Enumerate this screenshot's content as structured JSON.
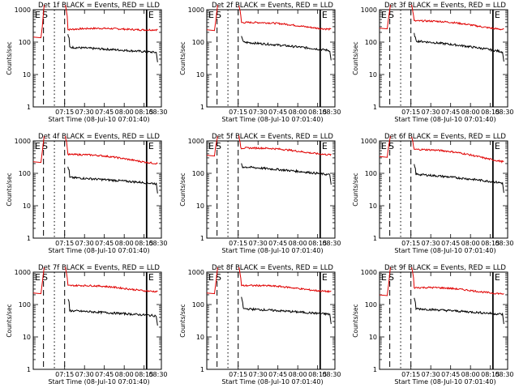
{
  "colors": {
    "events": "#000000",
    "lld": "#e00000",
    "axes": "#000000",
    "background": "#ffffff"
  },
  "chart_data": [
    {
      "type": "line",
      "title": "Det 1f BLACK = Events, RED = LLD",
      "scale": "log",
      "ylim": [
        1,
        1000
      ],
      "yticks": [
        "1",
        "10",
        "100",
        "1000"
      ],
      "ylabel": "Counts/sec",
      "xticks": [
        "07:15",
        "07:30",
        "07:45",
        "08:00",
        "08:15",
        "08:30"
      ],
      "xlabel": "Start Time (08-Jul-10 07:01:40)",
      "markers": [
        "E",
        "S",
        "E"
      ],
      "lld_level": 240,
      "lld_end": 260,
      "events_level": 70,
      "events_end": 48,
      "peak_events": 170,
      "series": [
        {
          "name": "BLACK = Events"
        },
        {
          "name": "RED = LLD"
        }
      ]
    },
    {
      "type": "line",
      "title": "Det 2f BLACK = Events, RED = LLD",
      "scale": "log",
      "ylim": [
        1,
        1000
      ],
      "yticks": [
        "1",
        "10",
        "100",
        "1000"
      ],
      "ylabel": "Counts/sec",
      "xticks": [
        "07:15",
        "07:30",
        "07:45",
        "08:00",
        "08:15",
        "08:30"
      ],
      "xlabel": "Start Time (08-Jul-10 07:01:40)",
      "markers": [
        "E",
        "S",
        "E"
      ],
      "lld_level": 400,
      "lld_end": 280,
      "events_level": 100,
      "events_end": 55,
      "peak_events": 160,
      "series": [
        {
          "name": "BLACK = Events"
        },
        {
          "name": "RED = LLD"
        }
      ]
    },
    {
      "type": "line",
      "title": "Det 3f BLACK = Events, RED = LLD",
      "scale": "log",
      "ylim": [
        1,
        1000
      ],
      "yticks": [
        "1",
        "10",
        "100",
        "1000"
      ],
      "ylabel": "Counts/sec",
      "xticks": [
        "07:15",
        "07:30",
        "07:45",
        "08:00",
        "08:15",
        "08:30"
      ],
      "xlabel": "Start Time (08-Jul-10 07:01:40)",
      "markers": [
        "E",
        "S",
        "E"
      ],
      "lld_level": 450,
      "lld_end": 280,
      "events_level": 110,
      "events_end": 50,
      "peak_events": 180,
      "series": [
        {
          "name": "BLACK = Events"
        },
        {
          "name": "RED = LLD"
        }
      ]
    },
    {
      "type": "line",
      "title": "Det 4f BLACK = Events, RED = LLD",
      "scale": "log",
      "ylim": [
        1,
        1000
      ],
      "yticks": [
        "1",
        "10",
        "100",
        "1000"
      ],
      "ylabel": "Counts/sec",
      "xticks": [
        "07:15",
        "07:30",
        "07:45",
        "08:00",
        "08:15",
        "08:30"
      ],
      "xlabel": "Start Time (08-Jul-10 07:01:40)",
      "markers": [
        "E",
        "S",
        "E"
      ],
      "lld_level": 380,
      "lld_end": 230,
      "events_level": 75,
      "events_end": 48,
      "peak_events": 160,
      "series": [
        {
          "name": "BLACK = Events"
        },
        {
          "name": "RED = LLD"
        }
      ]
    },
    {
      "type": "line",
      "title": "Det 5f BLACK = Events, RED = LLD",
      "scale": "log",
      "ylim": [
        1,
        1000
      ],
      "yticks": [
        "1",
        "10",
        "100",
        "1000"
      ],
      "ylabel": "Counts/sec",
      "xticks": [
        "07:15",
        "07:30",
        "07:45",
        "08:00",
        "08:15",
        "08:30"
      ],
      "xlabel": "Start Time (08-Jul-10 07:01:40)",
      "markers": [
        "E",
        "S",
        "E"
      ],
      "lld_level": 600,
      "lld_end": 420,
      "events_level": 160,
      "events_end": 90,
      "peak_events": 200,
      "series": [
        {
          "name": "BLACK = Events"
        },
        {
          "name": "RED = LLD"
        }
      ]
    },
    {
      "type": "line",
      "title": "Det 6f BLACK = Events, RED = LLD",
      "scale": "log",
      "ylim": [
        1,
        1000
      ],
      "yticks": [
        "1",
        "10",
        "100",
        "1000"
      ],
      "ylabel": "Counts/sec",
      "xticks": [
        "07:15",
        "07:30",
        "07:45",
        "08:00",
        "08:15",
        "08:30"
      ],
      "xlabel": "Start Time (08-Jul-10 07:01:40)",
      "markers": [
        "E",
        "S",
        "E"
      ],
      "lld_level": 550,
      "lld_end": 270,
      "events_level": 95,
      "events_end": 50,
      "peak_events": 180,
      "series": [
        {
          "name": "BLACK = Events"
        },
        {
          "name": "RED = LLD"
        }
      ]
    },
    {
      "type": "line",
      "title": "Det 7f BLACK = Events, RED = LLD",
      "scale": "log",
      "ylim": [
        1,
        1000
      ],
      "yticks": [
        "1",
        "10",
        "100",
        "1000"
      ],
      "ylabel": "Counts/sec",
      "xticks": [
        "07:15",
        "07:30",
        "07:45",
        "08:00",
        "08:15",
        "08:30"
      ],
      "xlabel": "Start Time (08-Jul-10 07:01:40)",
      "markers": [
        "E",
        "S",
        "E"
      ],
      "lld_level": 380,
      "lld_end": 280,
      "events_level": 65,
      "events_end": 45,
      "peak_events": 150,
      "series": [
        {
          "name": "BLACK = Events"
        },
        {
          "name": "RED = LLD"
        }
      ]
    },
    {
      "type": "line",
      "title": "Det 8f BLACK = Events, RED = LLD",
      "scale": "log",
      "ylim": [
        1,
        1000
      ],
      "yticks": [
        "1",
        "10",
        "100",
        "1000"
      ],
      "ylabel": "Counts/sec",
      "xticks": [
        "07:15",
        "07:30",
        "07:45",
        "08:00",
        "08:15",
        "08:30"
      ],
      "xlabel": "Start Time (08-Jul-10 07:01:40)",
      "markers": [
        "E",
        "S",
        "E"
      ],
      "lld_level": 380,
      "lld_end": 280,
      "events_level": 75,
      "events_end": 50,
      "peak_events": 160,
      "series": [
        {
          "name": "BLACK = Events"
        },
        {
          "name": "RED = LLD"
        }
      ]
    },
    {
      "type": "line",
      "title": "Det 9f BLACK = Events, RED = LLD",
      "scale": "log",
      "ylim": [
        1,
        1000
      ],
      "yticks": [
        "1",
        "10",
        "100",
        "1000"
      ],
      "ylabel": "Counts/sec",
      "xticks": [
        "07:15",
        "07:30",
        "07:45",
        "08:00",
        "08:15",
        "08:30"
      ],
      "xlabel": "Start Time (08-Jul-10 07:01:40)",
      "markers": [
        "E",
        "S",
        "E"
      ],
      "lld_level": 330,
      "lld_end": 240,
      "events_level": 75,
      "events_end": 50,
      "peak_events": 150,
      "series": [
        {
          "name": "BLACK = Events"
        },
        {
          "name": "RED = LLD"
        }
      ]
    }
  ]
}
